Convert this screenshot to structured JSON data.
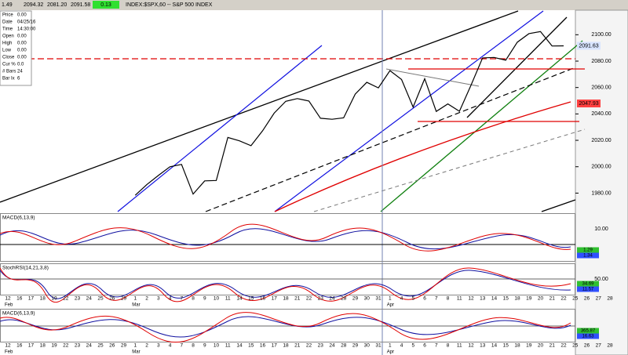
{
  "header": {
    "symbol": "INDEX:$SPX,60 -- S&P 500 INDEX",
    "fields": [
      "1.49",
      "2094.32",
      "2081.20",
      "2091.58"
    ],
    "change": "0.13"
  },
  "info": [
    [
      "Price",
      "0.00"
    ],
    [
      "Date",
      "04/25/16"
    ],
    [
      "Time",
      "14:30:00"
    ],
    [
      "Open",
      "0.00"
    ],
    [
      "High",
      "0.00"
    ],
    [
      "Low",
      "0.00"
    ],
    [
      "Close",
      "0.00"
    ],
    [
      "Cur %",
      "0.0"
    ],
    [
      "# Bars",
      "24"
    ],
    [
      "Bar Ix",
      "6"
    ]
  ],
  "chart_data": {
    "type": "line",
    "color": "#000000",
    "categories": [
      "12",
      "16",
      "17",
      "18",
      "19",
      "22",
      "23",
      "24",
      "25",
      "26",
      "29",
      "1",
      "2",
      "3",
      "4",
      "7",
      "8",
      "9",
      "10",
      "11",
      "14",
      "15",
      "16",
      "17",
      "18",
      "21",
      "22",
      "23",
      "24",
      "28",
      "29",
      "30",
      "31",
      "1",
      "4",
      "5",
      "6",
      "7",
      "8",
      "11",
      "12",
      "13",
      "14",
      "15",
      "18",
      "19",
      "20",
      "21",
      "22",
      "25",
      "26",
      "27",
      "28"
    ],
    "months": [
      "Feb",
      "Mar",
      "Apr"
    ],
    "values": [
      null,
      null,
      null,
      null,
      null,
      null,
      null,
      null,
      null,
      null,
      null,
      1978.35,
      1986.45,
      1993.4,
      1999.99,
      2001.76,
      1979.26,
      1989.26,
      1989.57,
      2022.19,
      2019.64,
      2015.93,
      2027.22,
      2040.59,
      2049.58,
      2051.6,
      2049.8,
      2036.71,
      2035.94,
      2037.05,
      2055.01,
      2063.95,
      2059.74,
      2072.78,
      2066.13,
      2045.17,
      2066.66,
      2041.91,
      2047.6,
      2041.99,
      2061.72,
      2082.42,
      2082.78,
      2080.73,
      2094.34,
      2100.8,
      2102.4,
      2091.48,
      2091.58,
      null,
      null,
      null,
      null
    ],
    "ylim": [
      1966,
      2118
    ],
    "yticks": [
      {
        "value": 1980,
        "label": "1980.00"
      },
      {
        "value": 2000,
        "label": "2000.00"
      },
      {
        "value": 2020,
        "label": "2020.00"
      },
      {
        "value": 2040,
        "label": "2040.00"
      },
      {
        "value": 2060,
        "label": "2060.00"
      },
      {
        "value": 2080,
        "label": "2080.00"
      },
      {
        "value": 2100,
        "label": "2100.00"
      }
    ],
    "price_tags": [
      {
        "value": 2091.63,
        "label": "2091.63",
        "color": "#d8e4ff"
      },
      {
        "value": 2047.93,
        "label": "2047.93",
        "color": "#ff4040"
      }
    ]
  },
  "panels": [
    {
      "label": "MACD(6,13,9)",
      "ticks": [
        "10.00"
      ],
      "tags": [
        "1.29",
        "1.34"
      ]
    },
    {
      "label": "StochRSI(14,21,3,8)",
      "ticks": [
        "50.00"
      ],
      "tags": [
        "34.69",
        "11.57"
      ]
    },
    {
      "label": "MACD(6,13,9)",
      "ticks": [],
      "tags": [
        "365.87",
        "16.63"
      ]
    }
  ]
}
